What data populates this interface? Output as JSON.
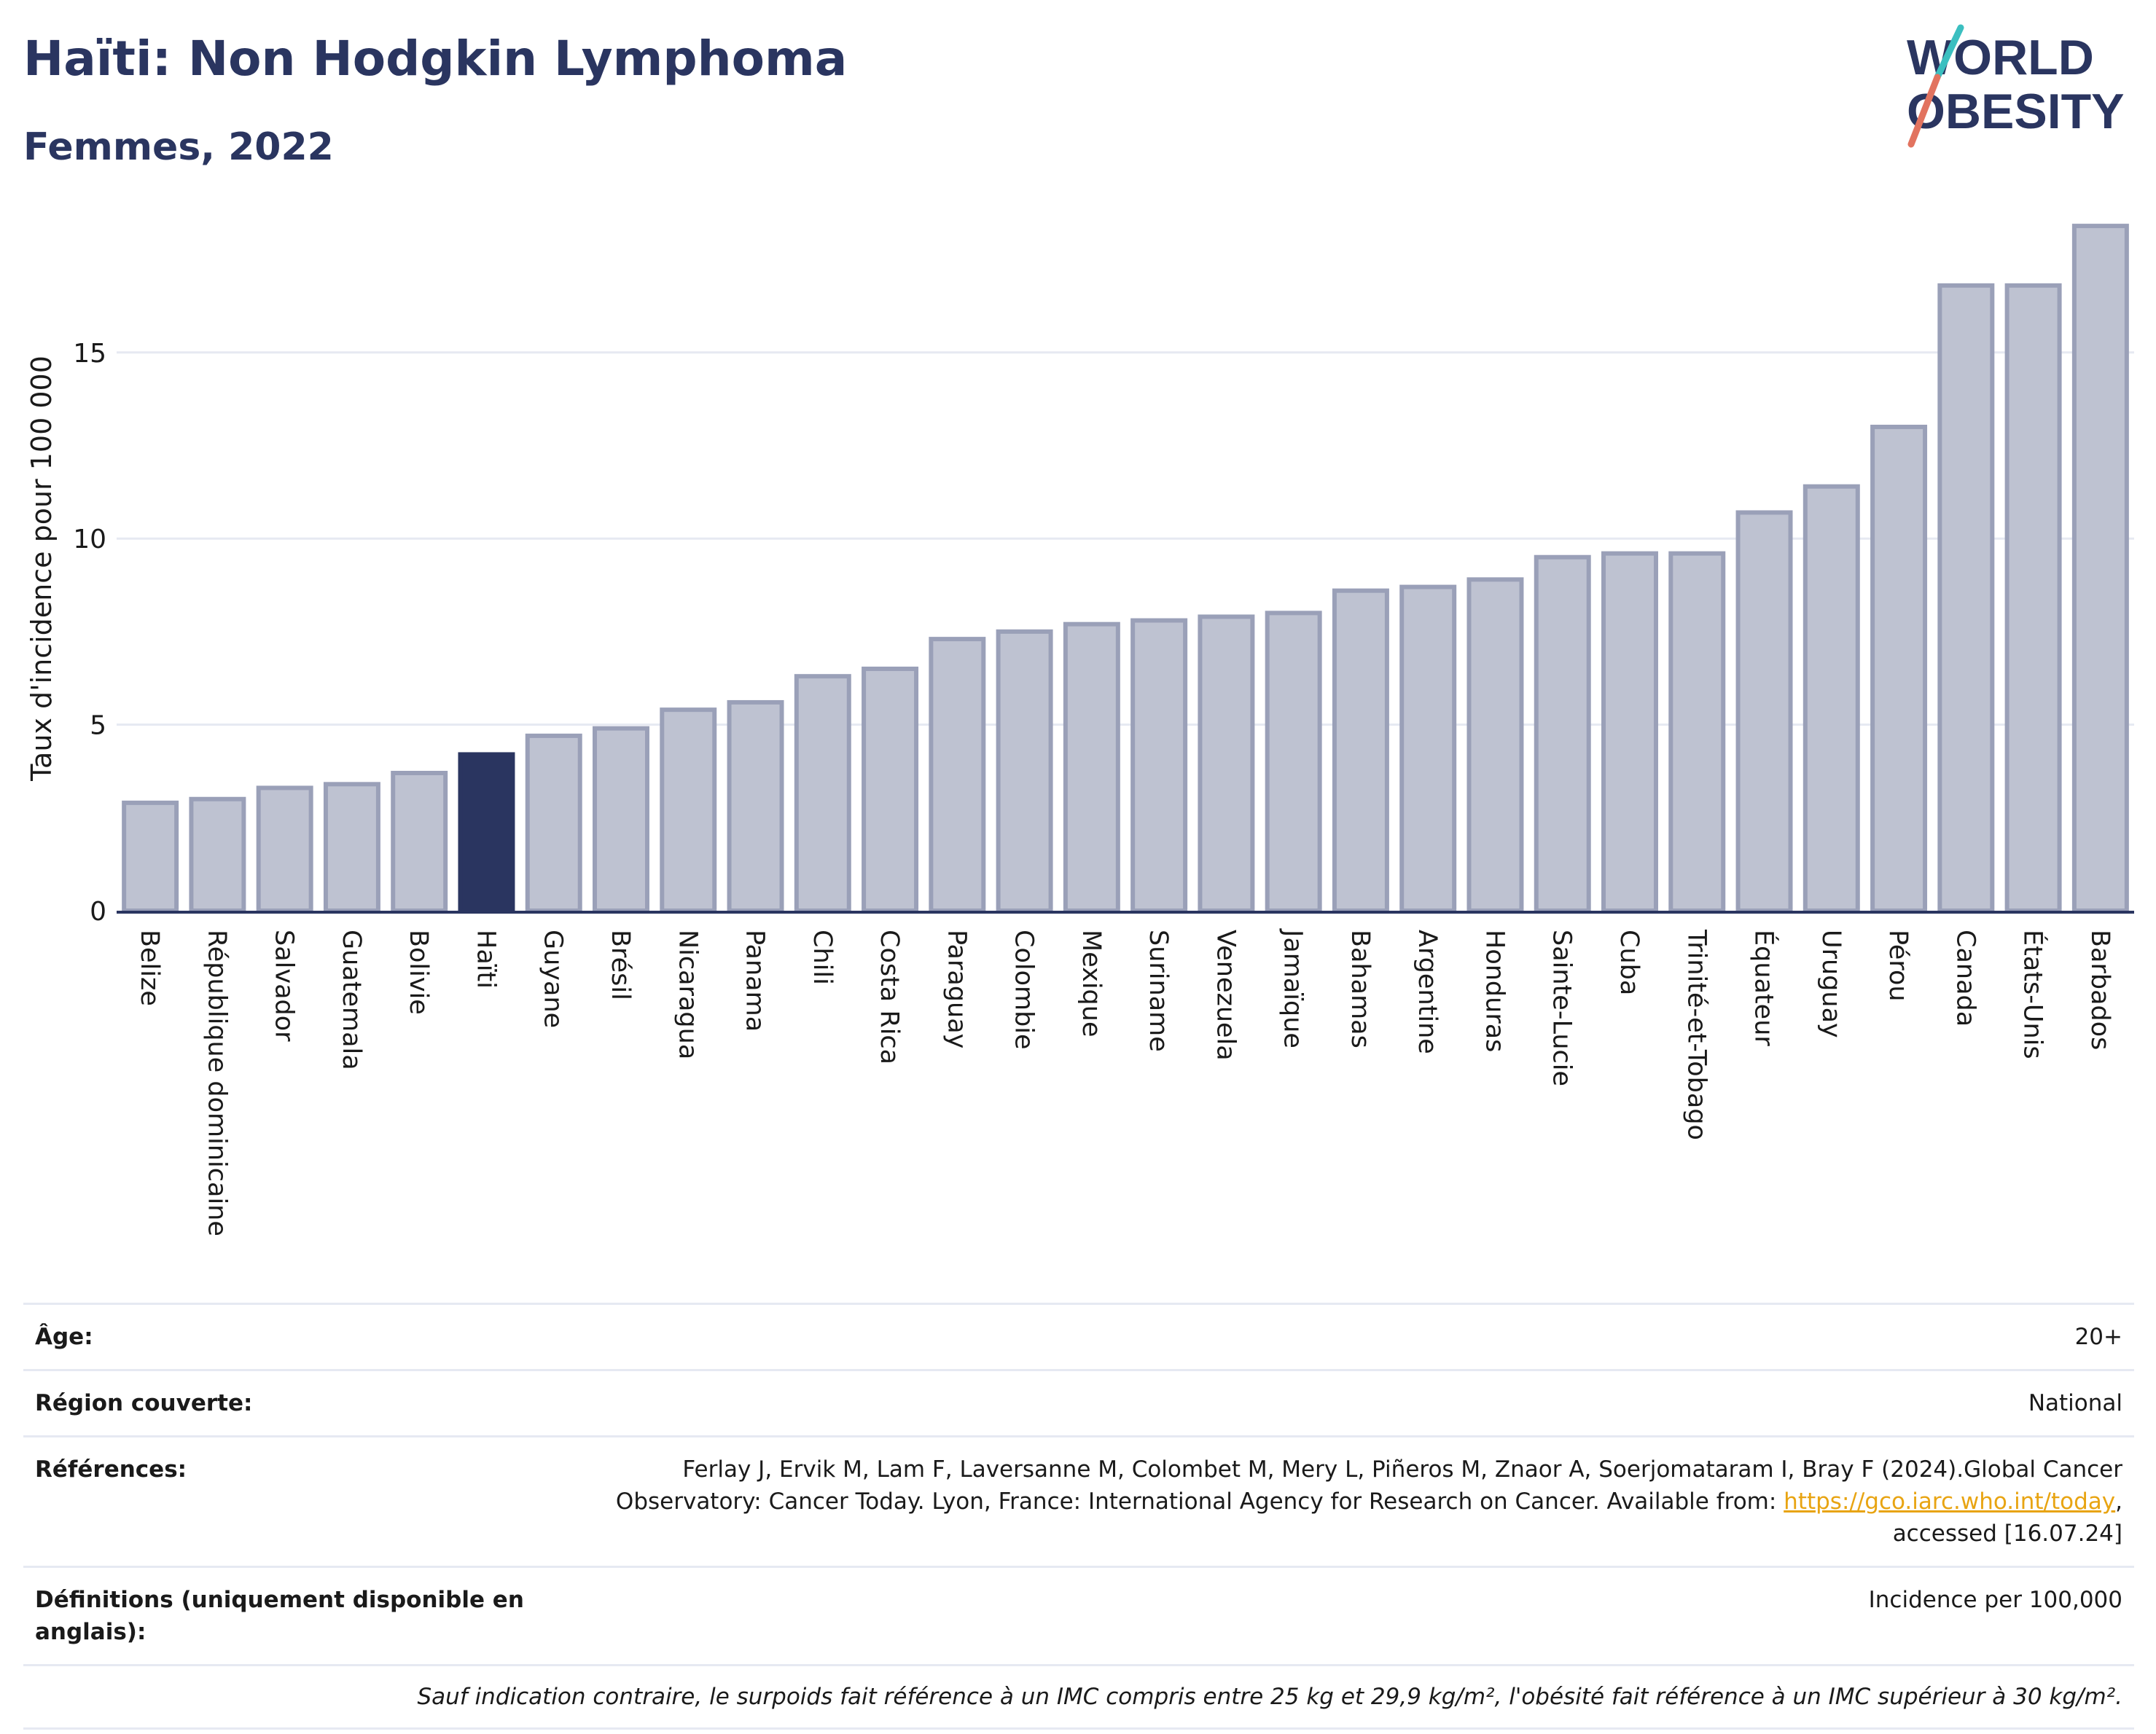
{
  "header": {
    "title": "Haïti: Non Hodgkin Lymphoma",
    "subtitle": "Femmes, 2022"
  },
  "logo": {
    "line1": "WORLD",
    "line2": "OBESITY"
  },
  "colors": {
    "highlight": "#2a3560",
    "bar_fill": "#bec2d1",
    "bar_stroke": "#9aa0b8",
    "grid": "#e6e9f2",
    "logo_teal": "#3bbfc0",
    "logo_coral": "#e2735f"
  },
  "chart_data": {
    "type": "bar",
    "ylabel": "Taux d'incidence pour 100 000",
    "ylim": [
      0,
      18.5
    ],
    "yticks": [
      0,
      5,
      10,
      15
    ],
    "grid": true,
    "highlight": "Haïti",
    "categories": [
      "Belize",
      "République dominicaine",
      "Salvador",
      "Guatemala",
      "Bolivie",
      "Haïti",
      "Guyane",
      "Brésil",
      "Nicaragua",
      "Panama",
      "Chili",
      "Costa Rica",
      "Paraguay",
      "Colombie",
      "Mexique",
      "Suriname",
      "Venezuela",
      "Jamaïque",
      "Bahamas",
      "Argentine",
      "Honduras",
      "Sainte-Lucie",
      "Cuba",
      "Trinité-et-Tobago",
      "Équateur",
      "Uruguay",
      "Pérou",
      "Canada",
      "États-Unis",
      "Barbados"
    ],
    "values": [
      2.9,
      3.0,
      3.3,
      3.4,
      3.7,
      4.2,
      4.7,
      4.9,
      5.4,
      5.6,
      6.3,
      6.5,
      7.3,
      7.5,
      7.7,
      7.8,
      7.9,
      8.0,
      8.6,
      8.7,
      8.9,
      9.5,
      9.6,
      9.6,
      10.7,
      11.4,
      13.0,
      16.8,
      16.8,
      18.4
    ]
  },
  "info": {
    "rows": [
      {
        "label": "Âge:",
        "value": "20+"
      },
      {
        "label": "Région couverte:",
        "value": "National"
      },
      {
        "label": "Références:",
        "value_pre": "Ferlay J, Ervik M, Lam F, Laversanne M, Colombet M, Mery L, Piñeros M, Znaor A, Soerjomataram I, Bray F (2024).Global Cancer Observatory: Cancer Today. Lyon, France: International Agency for Research on Cancer. Available from: ",
        "link": "https://gco.iarc.who.int/today",
        "value_post": ", accessed [16.07.24]"
      },
      {
        "label": "Définitions (uniquement disponible en anglais):",
        "value": "Incidence per 100,000"
      }
    ],
    "footnote": "Sauf indication contraire, le surpoids fait référence à un IMC compris entre 25 kg et 29,9 kg/m², l'obésité fait référence à un IMC supérieur à 30 kg/m²."
  }
}
